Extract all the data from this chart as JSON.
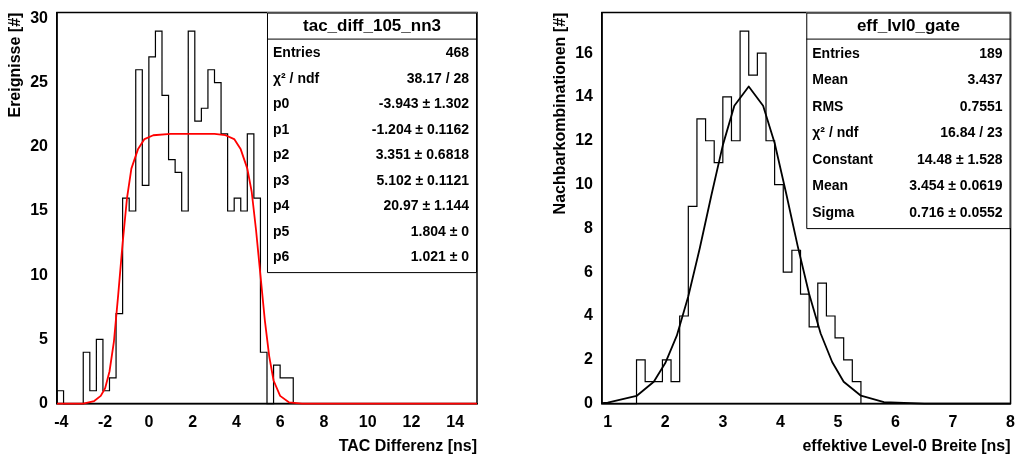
{
  "chart_data": [
    {
      "type": "histogram",
      "title": "tac_diff_105_nn3",
      "xlabel": "TAC Differenz [ns]",
      "ylabel": "Ereignisse [#]",
      "bins": [
        -4.2,
        -3.9,
        -3.6,
        -3.3,
        -3.0,
        -2.7,
        -2.4,
        -2.1,
        -1.8,
        -1.5,
        -1.2,
        -0.9,
        -0.6,
        -0.3,
        0,
        0.3,
        0.6,
        0.9,
        1.2,
        1.5,
        1.8,
        2.1,
        2.4,
        2.7,
        3.0,
        3.3,
        3.6,
        3.9,
        4.2,
        4.5,
        4.8,
        5.1,
        5.4,
        5.7,
        6.0,
        6.3,
        6.6
      ],
      "values": [
        1,
        0,
        0,
        0,
        4,
        1,
        5,
        1,
        2,
        7,
        16,
        15,
        26,
        17,
        27,
        29,
        24,
        19,
        18,
        15,
        29,
        22,
        23,
        26,
        25,
        21,
        15,
        16,
        15,
        21,
        16,
        4,
        0,
        3,
        2,
        2
      ],
      "color": "#000000",
      "series": [
        {
          "type": "line",
          "color": "#ff0000",
          "x": [
            -4.2,
            -3.0,
            -2.5,
            -2.2,
            -2.0,
            -1.8,
            -1.6,
            -1.4,
            -1.2,
            -1.0,
            -0.8,
            -0.5,
            -0.2,
            0.2,
            1.0,
            3.0,
            3.5,
            3.9,
            4.2,
            4.5,
            4.7,
            4.9,
            5.1,
            5.3,
            5.5,
            5.7,
            6.0,
            6.4,
            7.0,
            15.0
          ],
          "values": [
            0,
            0,
            0.2,
            0.6,
            1.2,
            2.5,
            4.8,
            8.5,
            12.5,
            16,
            18.3,
            19.8,
            20.6,
            20.9,
            21,
            21,
            20.9,
            20.6,
            19.8,
            18.3,
            16.5,
            13.5,
            10,
            6.5,
            3.7,
            1.8,
            0.6,
            0.1,
            0,
            0
          ]
        }
      ],
      "xlim": [
        -4.2,
        15
      ],
      "xticks": [
        -4,
        -2,
        0,
        2,
        4,
        6,
        8,
        10,
        12,
        14
      ],
      "ylim": [
        0,
        30.45
      ],
      "yticks": [
        0,
        5,
        10,
        15,
        20,
        25,
        30
      ],
      "grid": false,
      "legend": false,
      "annotations": [
        "Entries 468",
        "χ² / ndf 38.17 / 28",
        "p0 -3.943 ± 1.302",
        "p1 -1.204 ± 0.1162",
        "p2 3.351 ± 0.6818",
        "p3 5.102 ± 0.1121",
        "p4 20.97 ± 1.144",
        "p5 1.804 ± 0",
        "p6 1.021 ± 0"
      ]
    },
    {
      "type": "histogram",
      "title": "eff_lvl0_gate",
      "xlabel": "effektive Level-0 Breite [ns]",
      "ylabel": "Nachbarkombinationen [#]",
      "bins": [
        0.9,
        1.05,
        1.2,
        1.35,
        1.5,
        1.65,
        1.8,
        1.95,
        2.1,
        2.25,
        2.4,
        2.55,
        2.7,
        2.85,
        3.0,
        3.15,
        3.3,
        3.45,
        3.6,
        3.75,
        3.9,
        4.05,
        4.2,
        4.35,
        4.5,
        4.65,
        4.8,
        4.95,
        5.1,
        5.25,
        5.4
      ],
      "values": [
        0,
        0,
        0,
        0,
        2,
        1,
        1,
        2,
        1,
        4,
        9,
        13,
        12,
        11,
        14,
        12,
        17,
        15,
        16,
        12,
        10,
        6,
        7,
        5,
        3.5,
        5.5,
        4,
        3,
        2,
        1
      ],
      "color": "#000000",
      "series": [
        {
          "type": "line",
          "color": "#000000",
          "x": [
            0.9,
            1.0,
            1.5,
            1.8,
            2.0,
            2.2,
            2.4,
            2.6,
            2.8,
            3.0,
            3.2,
            3.45,
            3.7,
            3.9,
            4.1,
            4.3,
            4.5,
            4.7,
            4.9,
            5.1,
            5.4,
            5.8,
            6.5,
            8.0
          ],
          "values": [
            0.02,
            0.04,
            0.35,
            1.0,
            1.85,
            3.1,
            4.9,
            7.1,
            9.5,
            11.8,
            13.6,
            14.48,
            13.6,
            11.9,
            9.6,
            7.2,
            5.0,
            3.2,
            1.9,
            1.0,
            0.36,
            0.07,
            0,
            0
          ]
        }
      ],
      "xlim": [
        0.9,
        8
      ],
      "xticks": [
        1,
        2,
        3,
        4,
        5,
        6,
        7,
        8
      ],
      "ylim": [
        0,
        17.85
      ],
      "yticks": [
        0,
        2,
        4,
        6,
        8,
        10,
        12,
        14,
        16
      ],
      "grid": false,
      "legend": false,
      "annotations": [
        "Entries 189",
        "Mean 3.437",
        "RMS 0.7551",
        "χ² / ndf 16.84 / 23",
        "Constant 14.48 ± 1.528",
        "Mean 3.454 ± 0.0619",
        "Sigma 0.716 ± 0.0552"
      ]
    }
  ]
}
